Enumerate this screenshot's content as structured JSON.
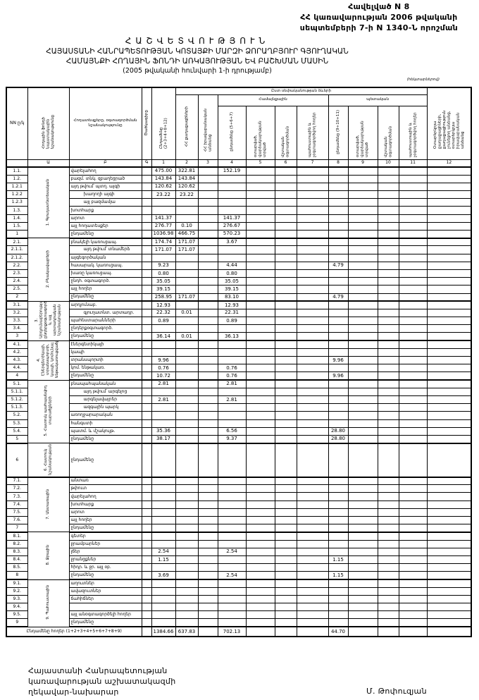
{
  "appendix": {
    "line1": "Հավելված N 8",
    "line2": "ՀՀ կառավարության 2006 թվականի",
    "line3": "սեպտեմբերի 7-ի N 1340-Ն որոշման"
  },
  "title": {
    "heading": "ՀԱՇՎԵՏՎՈՒԹՅՈՒՆ",
    "line1": "ՀԱՅԱՍՏԱՆԻ ՀԱՆՐԱՊԵՏՈՒԹՅԱՆ ԿՈՏԱՅՔԻ ՄԱՐԶԻ ՁՈՐԱՂԲՅՈՒՐ ԳՅՈՒՂԱԿԱՆ",
    "line2": "ՀԱՄԱՅՆՔԻ ՀՈՂԱՅԻՆ ՖՈՆԴԻ ԱՌԿԱՅՈՒԹՅԱՆ ԵՎ ԲԱՇԽՄԱՆ ՄԱՍԻՆ",
    "line3": "(2005 թվականի հունվարի 1-ի դրությամբ)"
  },
  "unit": "(հեկտարներով)",
  "header": {
    "no": "NN ը/կ",
    "group": "Հողային ֆոնդի նպատակային նշանակությունը",
    "name": "Հողատեսքերը, օգտագործման նշանակությունը",
    "code": "Ծածկագիրը",
    "c1": "Ընդամենը (2+3+4+8+12)",
    "span_main": "Ըստ սեփականության ձևերի",
    "c2": "ՀՀ քաղաքացիների",
    "c3": "ՀՀ իրավաբանական անձանց",
    "span_community": "Համայնքային",
    "c4": "ընդամենը (5+6+7)",
    "c5": "օտարված, վարձակալության տրված",
    "c6": "մշտական օգտագործման",
    "c7": "պահուստային և չօգտագործվող հողեր",
    "span_state": "պետական",
    "c8": "ընդամենը (9+10+11)",
    "c9": "օտարված, վարձակալության տրված",
    "c10": "մշտական օգտագործման",
    "c11": "պահուստային և չօգտագործվող հողեր",
    "c12": "Օտարերկրյա քաղաքացիների, քաղաքացիություն չունեցող անձանց, օտարերկրյա իրավաբանական անձանց",
    "index": [
      "",
      "Ա",
      "Բ",
      "Գ",
      "1",
      "2",
      "3",
      "4",
      "5",
      "6",
      "7",
      "8",
      "9",
      "10",
      "11",
      "12"
    ]
  },
  "groups": [
    {
      "label": "1. Գյուղատնտեսական",
      "rows": [
        {
          "no": "1.1.",
          "name": "վարելահող",
          "v": {
            "1": "475.00",
            "2": "322.81",
            "4": "152.19"
          }
        },
        {
          "no": "1.2.",
          "name": "բազմ. տնկ. զբաղեցրած",
          "v": {
            "1": "143.84",
            "2": "143.84"
          }
        },
        {
          "no": "1.2.1",
          "name": "այդ թվում՝ պտղ. այգի",
          "v": {
            "1": "120.62",
            "2": "120.62"
          }
        },
        {
          "no": "1.2.2",
          "name": "խաղողի այգի",
          "indent": true,
          "v": {
            "1": "23.22",
            "2": "23.22"
          }
        },
        {
          "no": "1.2.3",
          "name": "այլ բազմամյա",
          "indent": true,
          "v": {}
        },
        {
          "no": "1.3.",
          "name": "խոտհարք",
          "v": {}
        },
        {
          "no": "1.4.",
          "name": "արոտ",
          "v": {
            "1": "141.37",
            "4": "141.37"
          }
        },
        {
          "no": "1.5.",
          "name": "այլ հողատեսքեր",
          "v": {
            "1": "276.77",
            "2": "0.10",
            "4": "276.67"
          }
        },
        {
          "no": "1",
          "name": "ընդամենը",
          "total": true,
          "v": {
            "1": "1036.98",
            "2": "466.75",
            "4": "570.23"
          }
        }
      ]
    },
    {
      "label": "2. Բնակավայրերի",
      "rows": [
        {
          "no": "2.1.",
          "name": "բնակելի կառուցապ.",
          "v": {
            "1": "174.74",
            "2": "171.07",
            "4": "3.67"
          }
        },
        {
          "no": "2.1.1.",
          "name": "այդ թվում՝ տնամերձ",
          "indent": true,
          "v": {
            "1": "171.07",
            "2": "171.07"
          }
        },
        {
          "no": "2.1.2.",
          "name": "այգեգործական",
          "v": {}
        },
        {
          "no": "2.2.",
          "name": "հասարակ. կառուցապ.",
          "v": {
            "1": "9.23",
            "4": "4.44",
            "8": "4.79"
          }
        },
        {
          "no": "2.3.",
          "name": "խառը կառուցապ.",
          "v": {
            "1": "0.80",
            "4": "0.80"
          }
        },
        {
          "no": "2.4.",
          "name": "ընդհ. օգտագործ.",
          "v": {
            "1": "35.05",
            "4": "35.05"
          }
        },
        {
          "no": "2.5.",
          "name": "այլ հողեր",
          "v": {
            "1": "39.15",
            "4": "39.15"
          }
        },
        {
          "no": "2",
          "name": "ընդամենը",
          "total": true,
          "v": {
            "1": "258.95",
            "2": "171.07",
            "4": "83.10",
            "8": "4.79"
          }
        }
      ]
    },
    {
      "label": "3. Արդյունաբերության, ընդերքօգտագործման և այլ արտադրական նշանակության",
      "rows": [
        {
          "no": "3.1.",
          "name": "արդյունաբ.",
          "v": {
            "1": "12.93",
            "4": "12.93"
          }
        },
        {
          "no": "3.2.",
          "name": "գյուղատնտ. արտադր.",
          "indent": true,
          "v": {
            "1": "22.32",
            "2": "0.01",
            "4": "22.31"
          }
        },
        {
          "no": "3.3.",
          "name": "պահեստարանների",
          "v": {
            "1": "0.89",
            "4": "0.89"
          }
        },
        {
          "no": "3.4.",
          "name": "ընդերքօգտագործ.",
          "v": {}
        },
        {
          "no": "3",
          "name": "ընդամենը",
          "total": true,
          "v": {
            "1": "36.14",
            "2": "0.01",
            "4": "36.13"
          }
        }
      ]
    },
    {
      "label": "4. Էներգետիկայի, տրանսպորտի, կապի, կոմունալ ենթակառուցվածքների",
      "rows": [
        {
          "no": "4.1.",
          "name": "էներգետիկայի",
          "v": {}
        },
        {
          "no": "4.2.",
          "name": "կապի",
          "v": {}
        },
        {
          "no": "4.3.",
          "name": "տրանսպորտի",
          "v": {
            "1": "9.96",
            "8": "9.96"
          }
        },
        {
          "no": "4.4.",
          "name": "կոմ. ենթակառ.",
          "v": {
            "1": "0.76",
            "4": "0.76"
          }
        },
        {
          "no": "4",
          "name": "ընդամենը",
          "total": true,
          "v": {
            "1": "10.72",
            "4": "0.76",
            "8": "9.96"
          }
        }
      ]
    },
    {
      "label": "5. Հատուկ պահպանվող տարածքների",
      "rows": [
        {
          "no": "5.1.",
          "name": "բնապահպանական",
          "v": {
            "1": "2.81",
            "4": "2.81"
          }
        },
        {
          "no": "5.1.1.",
          "name": "այդ թվում՝ արգելոց",
          "indent": true,
          "v": {}
        },
        {
          "no": "5.1.2.",
          "name": "արգելավայրեր",
          "indent": true,
          "v": {
            "1": "2.81",
            "4": "2.81"
          }
        },
        {
          "no": "5.1.3.",
          "name": "ազգային պարկ",
          "indent": true,
          "v": {}
        },
        {
          "no": "5.2.",
          "name": "առողջարարական",
          "v": {}
        },
        {
          "no": "5.3.",
          "name": "հանգստի",
          "v": {}
        },
        {
          "no": "5.4.",
          "name": "պատմ. և մշակույթ.",
          "v": {
            "1": "35.36",
            "4": "6.56",
            "8": "28.80"
          }
        },
        {
          "no": "5",
          "name": "ընդամենը",
          "total": true,
          "v": {
            "1": "38.17",
            "4": "9.37",
            "8": "28.80"
          }
        }
      ]
    },
    {
      "label": "6. Հատուկ նշանակության",
      "tall": true,
      "rows": [
        {
          "no": "6",
          "name": "ընդամենը",
          "total": true,
          "v": {}
        }
      ]
    },
    {
      "label": "7. Անտառային",
      "rows": [
        {
          "no": "7.1.",
          "name": "անտառ",
          "v": {}
        },
        {
          "no": "7.2.",
          "name": "թփուտ",
          "v": {}
        },
        {
          "no": "7.3.",
          "name": "վարելահող",
          "v": {}
        },
        {
          "no": "7.4.",
          "name": "խոտհարք",
          "v": {}
        },
        {
          "no": "7.5.",
          "name": "արոտ",
          "v": {}
        },
        {
          "no": "7.6.",
          "name": "այլ հողեր",
          "v": {}
        },
        {
          "no": "7",
          "name": "ընդամենը",
          "total": true,
          "v": {}
        }
      ]
    },
    {
      "label": "8. Ջրային",
      "rows": [
        {
          "no": "8.1.",
          "name": "գետեր",
          "v": {}
        },
        {
          "no": "8.2.",
          "name": "ջրամբարներ",
          "v": {}
        },
        {
          "no": "8.3.",
          "name": "լճեր",
          "v": {
            "1": "2.54",
            "4": "2.54"
          }
        },
        {
          "no": "8.4.",
          "name": "ջրանցքներ",
          "v": {
            "1": "1.15",
            "8": "1.15"
          }
        },
        {
          "no": "8.5.",
          "name": "հիդր. և ջր. այլ օբ.",
          "v": {}
        },
        {
          "no": "8",
          "name": "ընդամենը",
          "total": true,
          "v": {
            "1": "3.69",
            "4": "2.54",
            "8": "1.15"
          }
        }
      ]
    },
    {
      "label": "9. Պահուստային",
      "rows": [
        {
          "no": "9.1.",
          "name": "աղուտներ",
          "v": {}
        },
        {
          "no": "9.2.",
          "name": "ավազուտներ",
          "v": {}
        },
        {
          "no": "9.3.",
          "name": "ճահիճներ",
          "v": {}
        },
        {
          "no": "9.4.",
          "name": "",
          "v": {}
        },
        {
          "no": "9.5.",
          "name": "այլ անօգտագործելի հողեր",
          "v": {}
        },
        {
          "no": "9",
          "name": "ընդամենը",
          "total": true,
          "v": {}
        }
      ]
    }
  ],
  "total": {
    "label": "Ընդամենը հողեր (1+2+3+4+5+6+7+8+9)",
    "v": {
      "1": "1384.66",
      "2": "637.83",
      "4": "702.13",
      "8": "44.70"
    }
  },
  "footer": {
    "line1": "Հայաստանի Հանրապետության",
    "line2": "կառավարության աշխատակազմի",
    "line3": "ղեկավար-նախարար",
    "signatory": "Մ. Թոփուզյան"
  }
}
